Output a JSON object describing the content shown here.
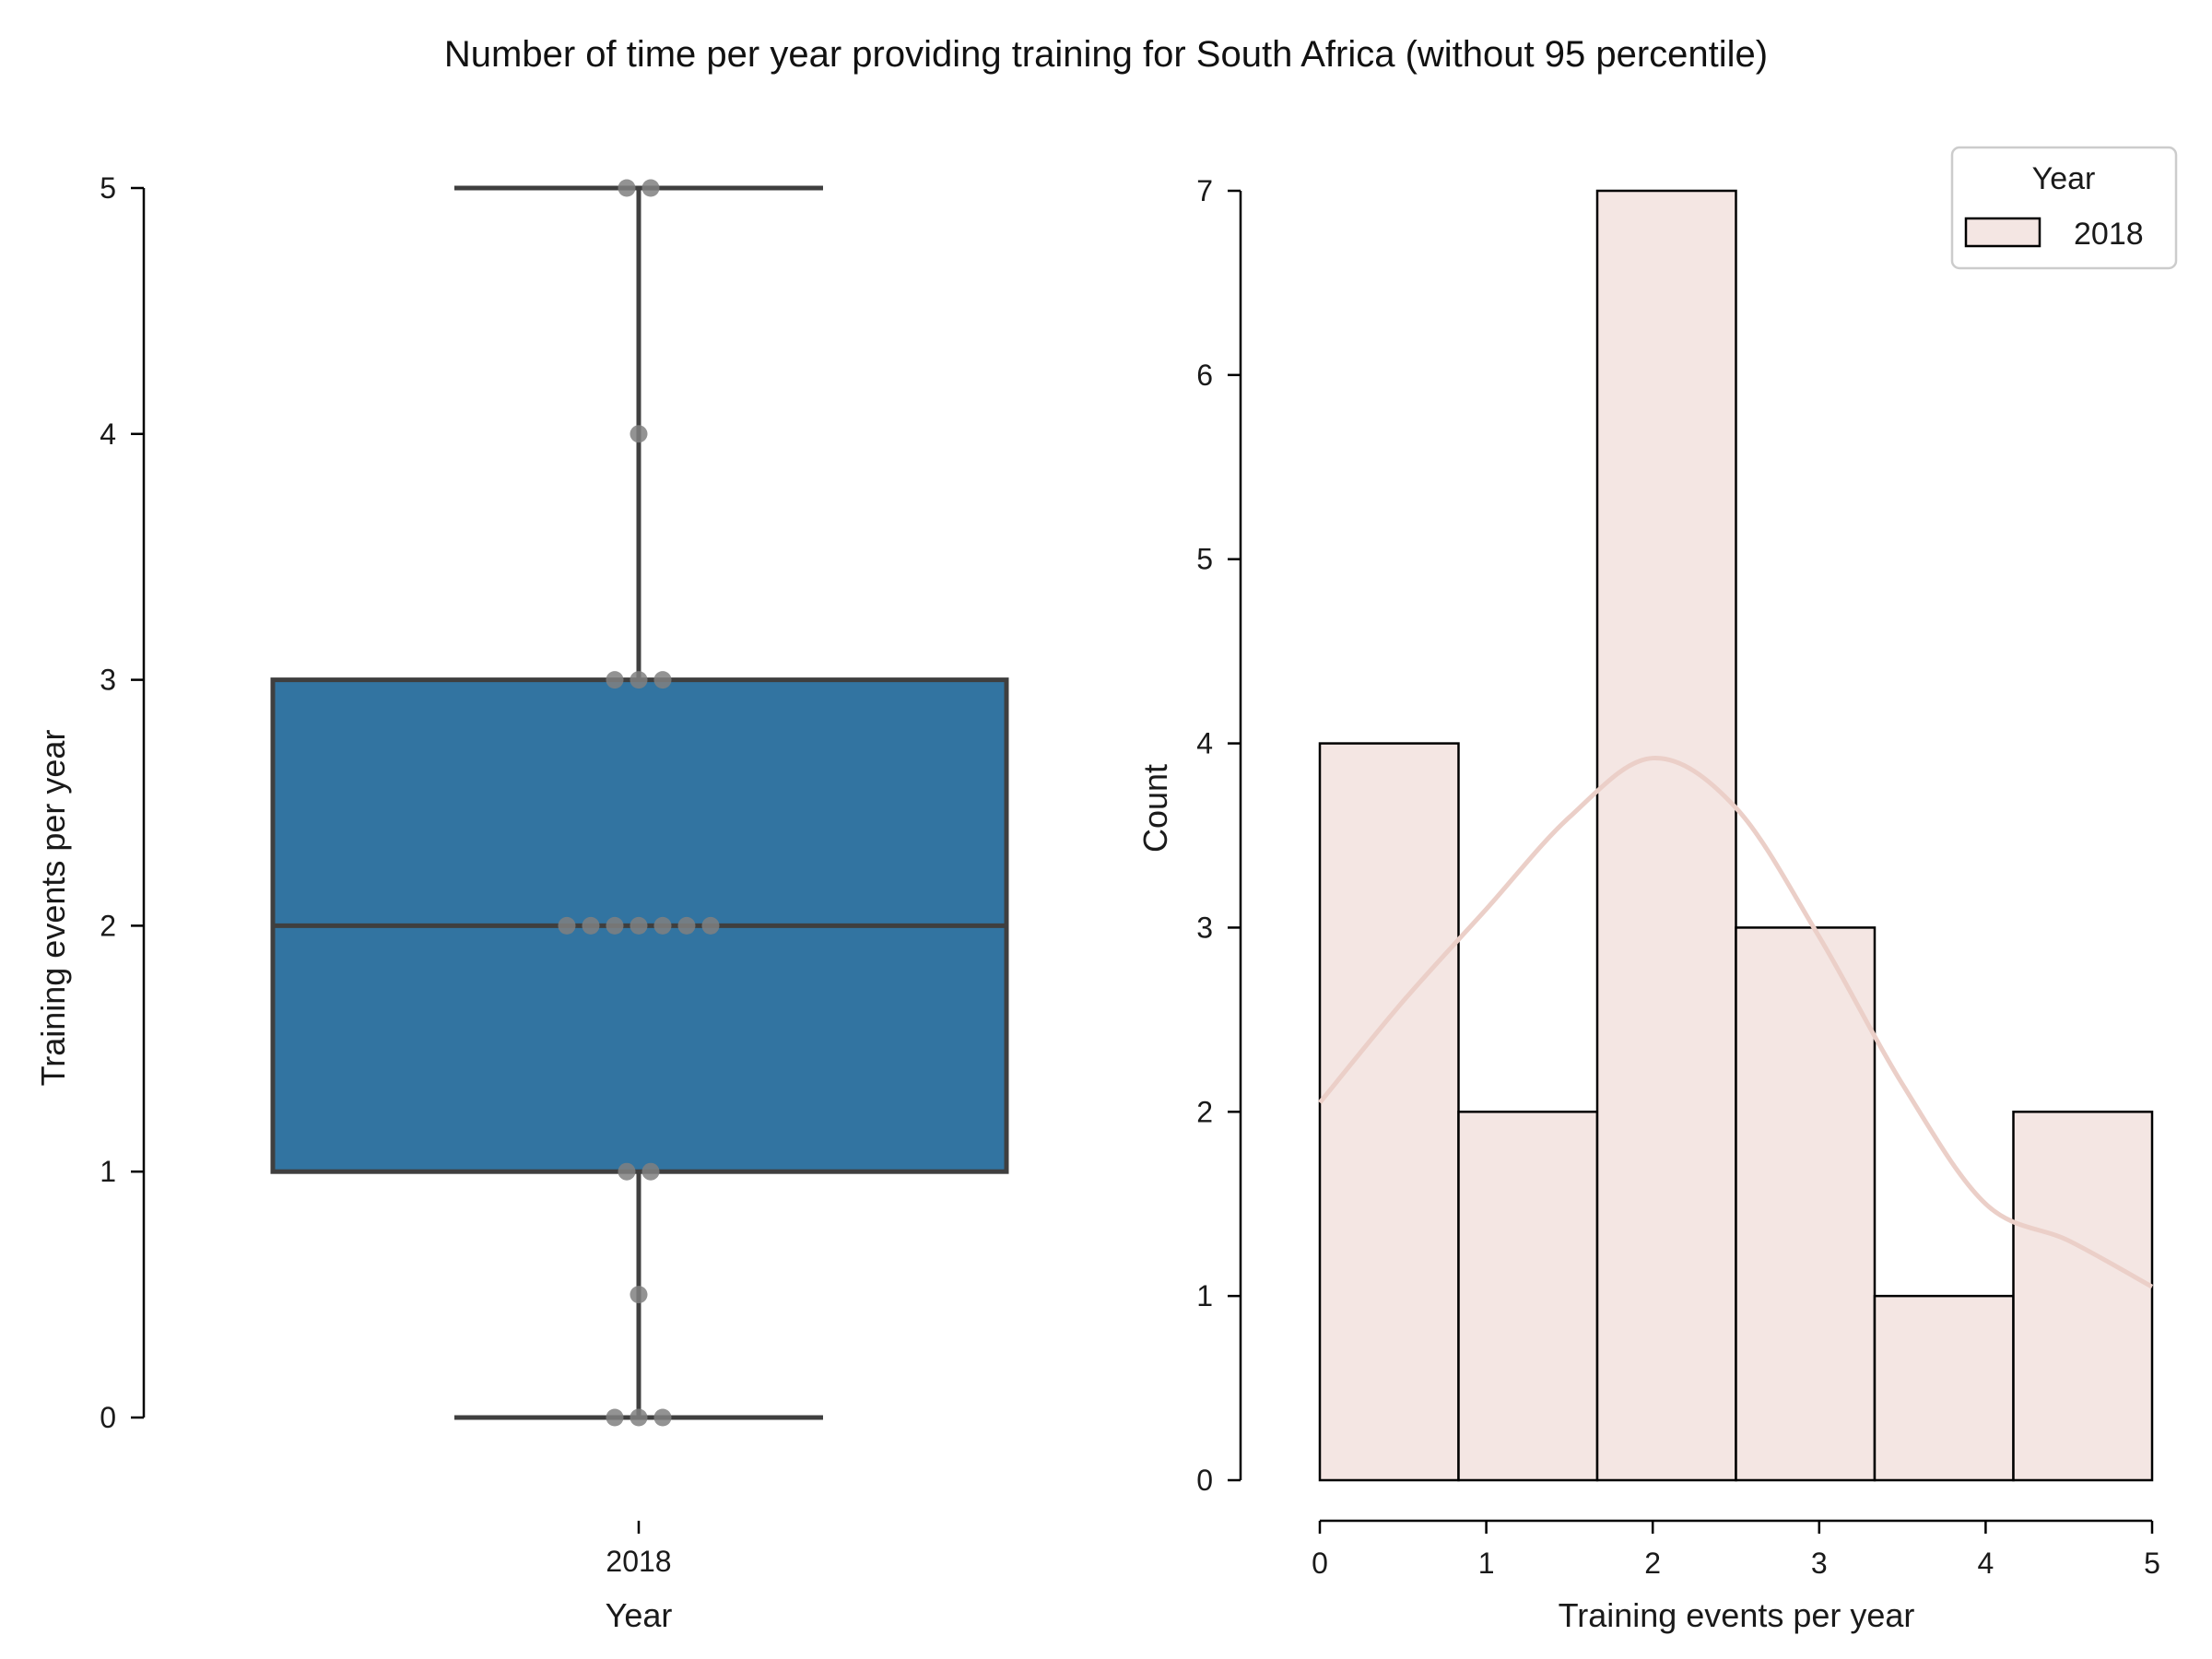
{
  "title": "Number of time per year providing training for South Africa (without 95 percentile)",
  "chart_data": [
    {
      "type": "box",
      "xlabel": "Year",
      "ylabel": "Training events per year",
      "categories": [
        "2018"
      ],
      "ylim": [
        0,
        5
      ],
      "yticks": [
        "0",
        "1",
        "2",
        "3",
        "4",
        "5"
      ],
      "box": {
        "whisker_low": 0,
        "q1": 1,
        "median": 2,
        "q3": 3,
        "whisker_high": 5
      },
      "points": [
        5,
        5,
        4,
        3,
        3,
        3,
        2,
        2,
        2,
        2,
        2,
        2,
        2,
        1,
        1,
        0.5,
        0,
        0,
        0
      ],
      "colors": {
        "box_fill": "#3274a1",
        "box_edge": "#3f3f3f",
        "point": "#808080"
      }
    },
    {
      "type": "bar",
      "subtype": "histogram",
      "xlabel": "Training events per year",
      "ylabel": "Count",
      "xlim": [
        0,
        5
      ],
      "ylim": [
        0,
        7
      ],
      "xticks": [
        "0",
        "1",
        "2",
        "3",
        "4",
        "5"
      ],
      "yticks": [
        "0",
        "1",
        "2",
        "3",
        "4",
        "5",
        "6",
        "7"
      ],
      "bin_edges": [
        0,
        0.8333,
        1.6667,
        2.5,
        3.3333,
        4.1667,
        5
      ],
      "counts": [
        4,
        2,
        7,
        3,
        1,
        2
      ],
      "kde": {
        "x": [
          0,
          0.5,
          1,
          1.5,
          2,
          2.5,
          3,
          3.5,
          4,
          4.5,
          5
        ],
        "y": [
          2.05,
          2.6,
          3.1,
          3.6,
          3.92,
          3.65,
          2.95,
          2.15,
          1.5,
          1.3,
          1.05
        ]
      },
      "legend": {
        "title": "Year",
        "entries": [
          "2018"
        ],
        "position": "top-right"
      },
      "colors": {
        "bar_fill": "#f4e6e3",
        "bar_edge": "#000000",
        "kde": "#ebcfc8"
      }
    }
  ]
}
